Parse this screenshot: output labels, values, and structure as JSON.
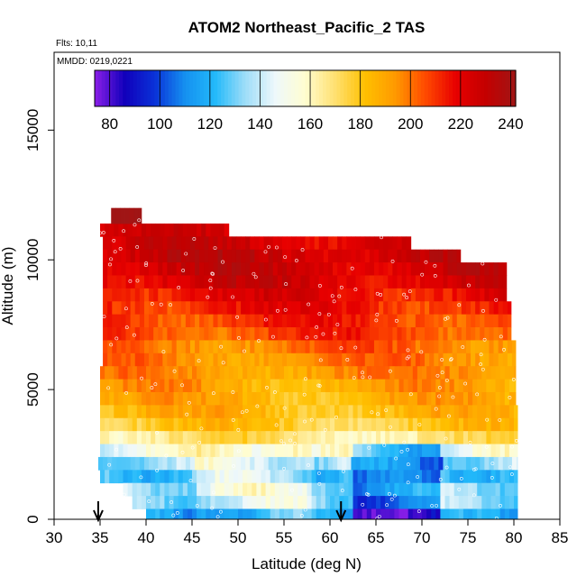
{
  "chart_data": {
    "type": "heatmap",
    "title": "ATOM2 Northeast_Pacific_2 TAS",
    "flights_label": "Flts: 10,11",
    "dates_label": "MMDD: 0219,0221",
    "xlabel": "Latitude (deg N)",
    "ylabel": "Altitude (m)",
    "xlim": [
      30,
      85
    ],
    "ylim": [
      0,
      18000
    ],
    "x_ticks": [
      30,
      35,
      40,
      45,
      50,
      55,
      60,
      65,
      70,
      75,
      80,
      85
    ],
    "y_ticks": [
      0,
      5000,
      10000,
      15000
    ],
    "colorbar": {
      "range": [
        74,
        242
      ],
      "tick_values": [
        80,
        100,
        120,
        140,
        160,
        180,
        200,
        220,
        240
      ],
      "tick_labels": [
        "80",
        "100",
        "120",
        "140",
        "160",
        "180",
        "200",
        "220",
        "240"
      ],
      "colors": [
        "#8b1fe8",
        "#1100bb",
        "#0a32d8",
        "#1590f0",
        "#22b9fa",
        "#9dddf8",
        "#eef8fb",
        "#fffdd0",
        "#ffe070",
        "#ffc000",
        "#ff9900",
        "#ff4a00",
        "#e80000",
        "#c40000",
        "#a01515"
      ]
    },
    "arrow_latitudes": [
      34.8,
      61.2
    ],
    "altitude_bands": [
      {
        "alt": [
          10900,
          11400
        ],
        "lat": [
          35.0,
          49.0
        ],
        "tas": 222
      },
      {
        "alt": [
          11400,
          12000
        ],
        "lat": [
          36.2,
          39.5
        ],
        "tas": 238
      },
      {
        "alt": [
          10400,
          10900
        ],
        "lat": [
          35.3,
          68.8
        ],
        "tas": 225
      },
      {
        "alt": [
          9900,
          10400
        ],
        "lat": [
          35.3,
          74.2
        ],
        "tas": 228
      },
      {
        "alt": [
          9400,
          9900
        ],
        "lat": [
          35.3,
          79.2
        ],
        "tas": 226
      },
      {
        "alt": [
          8900,
          9400
        ],
        "lat": [
          35.3,
          79.2
        ],
        "tas": 224
      },
      {
        "alt": [
          8400,
          8900
        ],
        "lat": [
          35.3,
          79.2
        ],
        "tas": 218
      },
      {
        "alt": [
          7900,
          8400
        ],
        "lat": [
          35.3,
          79.7
        ],
        "tas": 214
      },
      {
        "alt": [
          7400,
          7900
        ],
        "lat": [
          35.3,
          79.7
        ],
        "tas": 210
      },
      {
        "alt": [
          6900,
          7400
        ],
        "lat": [
          35.3,
          79.7
        ],
        "tas": 207
      },
      {
        "alt": [
          6400,
          6900
        ],
        "lat": [
          35.3,
          80.2
        ],
        "tas": 200
      },
      {
        "alt": [
          5900,
          6400
        ],
        "lat": [
          35.3,
          80.2
        ],
        "tas": 197
      },
      {
        "alt": [
          5400,
          5900
        ],
        "lat": [
          35.0,
          80.2
        ],
        "tas": 194
      },
      {
        "alt": [
          4900,
          5400
        ],
        "lat": [
          35.0,
          80.2
        ],
        "tas": 190
      },
      {
        "alt": [
          4400,
          4900
        ],
        "lat": [
          35.0,
          80.2
        ],
        "tas": 187
      },
      {
        "alt": [
          3900,
          4400
        ],
        "lat": [
          35.0,
          80.4
        ],
        "tas": 184
      },
      {
        "alt": [
          3400,
          3900
        ],
        "lat": [
          35.0,
          80.4
        ],
        "tas": 178
      },
      {
        "alt": [
          2900,
          3400
        ],
        "lat": [
          35.0,
          80.4
        ],
        "tas": 168
      },
      {
        "alt": [
          2400,
          2900
        ],
        "lat": [
          35.0,
          80.4
        ],
        "tas": 150
      },
      {
        "alt": [
          1900,
          2400
        ],
        "lat": [
          34.8,
          80.4
        ],
        "tas": 135
      },
      {
        "alt": [
          1400,
          1900
        ],
        "lat": [
          35.0,
          80.4
        ],
        "tas": 128
      },
      {
        "alt": [
          900,
          1400
        ],
        "lat": [
          37.5,
          80.4
        ],
        "tas": 138
      },
      {
        "alt": [
          400,
          900
        ],
        "lat": [
          38.5,
          80.4
        ],
        "tas": 132
      },
      {
        "alt": [
          0,
          400
        ],
        "lat": [
          40.0,
          80.4
        ],
        "tas": 112
      }
    ]
  }
}
